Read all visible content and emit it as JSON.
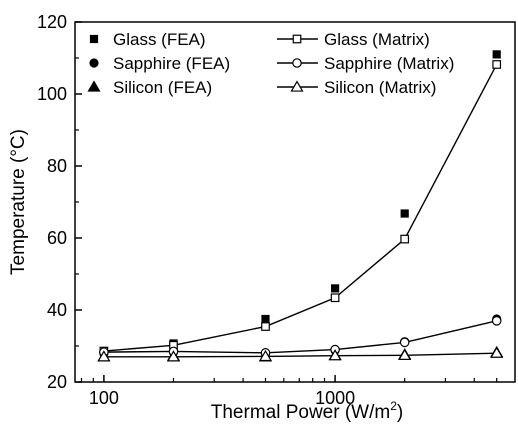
{
  "chart_data": {
    "type": "scatter",
    "xlabel": "Thermal Power (W/m",
    "xlabel_sup": "2",
    "xlabel_end": ")",
    "ylabel": "Temperature (°C)",
    "x_scale": "log",
    "xlim": [
      75,
      6000
    ],
    "ylim": [
      20,
      120
    ],
    "x_ticks": [
      100,
      1000
    ],
    "x_tick_labels": [
      "100",
      "1000"
    ],
    "y_ticks": [
      20,
      40,
      60,
      80,
      100,
      120
    ],
    "y_tick_labels": [
      "20",
      "40",
      "60",
      "80",
      "100",
      "120"
    ],
    "grid": false,
    "legend_position": "top",
    "x": [
      100,
      200,
      500,
      1000,
      2000,
      5000
    ],
    "series": [
      {
        "name": "Glass (FEA)",
        "kind": "markers",
        "marker": "square-filled",
        "values": [
          28.5,
          30.7,
          37.5,
          46.0,
          66.8,
          111.0
        ]
      },
      {
        "name": "Sapphire (FEA)",
        "kind": "markers",
        "marker": "circle-filled",
        "values": [
          28.0,
          28.3,
          27.8,
          28.8,
          31.2,
          37.5
        ]
      },
      {
        "name": "Silicon (FEA)",
        "kind": "markers",
        "marker": "triangle-filled",
        "values": [
          27.0,
          27.2,
          27.0,
          27.4,
          27.6,
          28.2
        ]
      },
      {
        "name": "Glass (Matrix)",
        "kind": "line",
        "marker": "square-open",
        "values": [
          28.6,
          30.2,
          35.4,
          43.4,
          59.7,
          108.2
        ]
      },
      {
        "name": "Sapphire (Matrix)",
        "kind": "line",
        "marker": "circle-open",
        "values": [
          28.3,
          28.5,
          28.1,
          29.0,
          31.0,
          37.0
        ]
      },
      {
        "name": "Silicon (Matrix)",
        "kind": "line",
        "marker": "triangle-open",
        "values": [
          27.0,
          27.0,
          27.1,
          27.3,
          27.4,
          28.0
        ]
      }
    ]
  }
}
